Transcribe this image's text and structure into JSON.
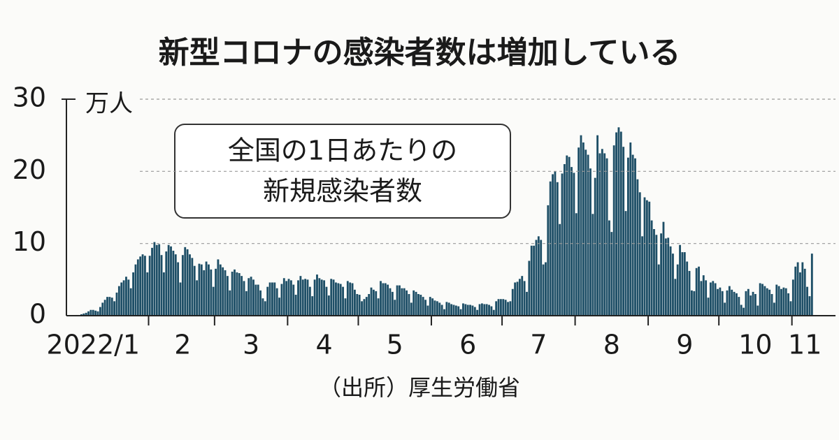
{
  "chart_data": {
    "type": "bar",
    "title": "新型コロナの感染者数は増加している",
    "y_unit": "万人",
    "annotation": [
      "全国の1日あたりの",
      "新規感染者数"
    ],
    "source": "（出所）厚生労働省",
    "color": "#1d4e66",
    "ylim": [
      0,
      30
    ],
    "yticks": [
      0,
      10,
      20,
      30
    ],
    "grid": true,
    "categories": [
      null,
      null,
      null,
      null,
      null,
      null,
      null,
      "2022/1",
      null,
      null,
      null,
      null,
      null,
      null,
      null,
      null,
      null,
      null,
      null,
      null,
      null,
      null,
      null,
      null,
      null,
      null,
      null,
      null,
      null,
      null,
      null,
      null,
      null,
      null,
      null,
      null,
      null,
      null,
      null,
      null,
      null,
      null,
      null,
      null,
      null,
      "2",
      null,
      null,
      null,
      null,
      null,
      null,
      null,
      null,
      null,
      null,
      null,
      null,
      null,
      null,
      null,
      null,
      null,
      null,
      null,
      null,
      null,
      null,
      null,
      null,
      null,
      null,
      null,
      null,
      "3",
      null,
      null,
      null,
      null,
      null,
      null,
      null,
      null,
      null,
      null,
      null,
      null,
      null,
      null,
      null,
      null,
      null,
      null,
      null,
      null,
      null,
      null,
      null,
      null,
      null,
      null,
      null,
      null,
      null,
      null,
      "4",
      null,
      null,
      null,
      null,
      null,
      null,
      null,
      null,
      null,
      null,
      null,
      null,
      null,
      null,
      null,
      null,
      null,
      null,
      null,
      null,
      null,
      null,
      null,
      null,
      null,
      null,
      null,
      null,
      null,
      "5",
      null,
      null,
      null,
      null,
      null,
      null,
      null,
      null,
      null,
      null,
      null,
      null,
      null,
      null,
      null,
      null,
      null,
      null,
      null,
      null,
      null,
      null,
      null,
      null,
      null,
      null,
      null,
      null,
      null,
      null,
      "6",
      null,
      null,
      null,
      null,
      null,
      null,
      null,
      null,
      null,
      null,
      null,
      null,
      null,
      null,
      null,
      null,
      null,
      null,
      null,
      null,
      null,
      null,
      null,
      null,
      null,
      null,
      null,
      null,
      null,
      "7",
      null,
      null,
      null,
      null,
      null,
      null,
      null,
      null,
      null,
      null,
      null,
      null,
      null,
      null,
      null,
      null,
      null,
      null,
      null,
      null,
      null,
      null,
      null,
      null,
      null,
      null,
      null,
      null,
      null,
      null,
      "8",
      null,
      null,
      null,
      null,
      null,
      null,
      null,
      null,
      null,
      null,
      null,
      null,
      null,
      null,
      null,
      null,
      null,
      null,
      null,
      null,
      null,
      null,
      null,
      null,
      null,
      null,
      null,
      null,
      null,
      null,
      "9",
      null,
      null,
      null,
      null,
      null,
      null,
      null,
      null,
      null,
      null,
      null,
      null,
      null,
      null,
      null,
      null,
      null,
      null,
      null,
      null,
      null,
      null,
      null,
      null,
      null,
      null,
      null,
      null,
      null,
      "10",
      null,
      null,
      null,
      null,
      null,
      null,
      null,
      null,
      null,
      null,
      null,
      null,
      null,
      null,
      null,
      null,
      null,
      null,
      null,
      null,
      "11",
      null,
      null,
      null
    ],
    "values": [
      0.1,
      0.1,
      0.2,
      0.3,
      0.4,
      0.6,
      0.8,
      0.8,
      0.7,
      0.6,
      1.2,
      1.8,
      2.2,
      2.6,
      2.6,
      2.5,
      2.0,
      3.2,
      4.1,
      4.6,
      4.9,
      5.4,
      5.0,
      3.8,
      6.0,
      7.1,
      7.8,
      8.2,
      8.5,
      8.3,
      6.0,
      8.3,
      9.4,
      10.2,
      9.8,
      9.9,
      8.4,
      6.0,
      8.9,
      9.8,
      9.6,
      9.0,
      8.5,
      7.4,
      4.6,
      8.4,
      9.5,
      9.2,
      8.5,
      8.0,
      6.9,
      4.9,
      7.2,
      7.1,
      6.3,
      7.5,
      7.1,
      6.4,
      4.0,
      6.5,
      7.8,
      7.1,
      6.7,
      6.3,
      5.5,
      3.5,
      6.1,
      6.4,
      6.0,
      5.9,
      5.5,
      4.8,
      3.4,
      5.2,
      5.4,
      5.0,
      4.3,
      4.3,
      3.5,
      2.4,
      2.0,
      4.0,
      4.6,
      4.6,
      4.6,
      3.8,
      2.5,
      4.4,
      5.2,
      4.8,
      5.1,
      4.9,
      4.3,
      2.9,
      4.9,
      5.5,
      5.0,
      5.1,
      5.0,
      4.0,
      2.7,
      5.0,
      5.7,
      5.2,
      5.0,
      4.9,
      4.0,
      2.8,
      5.1,
      5.0,
      4.6,
      4.5,
      4.4,
      4.0,
      2.4,
      4.8,
      4.6,
      4.5,
      3.6,
      3.0,
      2.9,
      2.0,
      2.3,
      2.6,
      3.0,
      3.9,
      3.6,
      3.4,
      2.4,
      4.8,
      4.5,
      4.5,
      4.3,
      3.8,
      3.3,
      2.2,
      4.2,
      4.2,
      3.8,
      3.8,
      3.5,
      3.0,
      1.8,
      3.5,
      3.3,
      3.0,
      2.9,
      2.6,
      2.2,
      1.4,
      2.6,
      2.4,
      2.1,
      2.0,
      1.8,
      1.5,
      0.9,
      1.9,
      1.8,
      1.6,
      1.5,
      1.4,
      1.3,
      0.9,
      1.7,
      1.6,
      1.5,
      1.5,
      1.4,
      1.2,
      0.8,
      1.6,
      1.7,
      1.6,
      1.6,
      1.5,
      1.3,
      0.8,
      2.0,
      2.3,
      2.3,
      2.3,
      2.2,
      1.9,
      2.0,
      3.7,
      4.6,
      4.7,
      5.1,
      5.5,
      4.8,
      3.3,
      7.6,
      9.7,
      9.7,
      10.5,
      11.0,
      10.5,
      7.1,
      7.4,
      15.3,
      18.6,
      19.6,
      20.0,
      18.5,
      12.7,
      19.7,
      21.0,
      22.2,
      22.0,
      20.6,
      19.8,
      14.2,
      23.3,
      25.0,
      24.0,
      23.0,
      22.3,
      20.4,
      14.1,
      19.1,
      25.0,
      22.5,
      23.1,
      22.5,
      21.8,
      13.2,
      11.6,
      23.6,
      25.4,
      26.1,
      25.5,
      23.4,
      14.5,
      21.9,
      24.0,
      22.3,
      21.8,
      18.9,
      17.1,
      11.0,
      16.4,
      16.0,
      15.8,
      13.2,
      12.0,
      11.2,
      7.1,
      11.4,
      13.0,
      10.7,
      10.8,
      9.6,
      8.6,
      5.1,
      7.1,
      9.8,
      8.8,
      8.8,
      7.5,
      6.2,
      3.5,
      3.4,
      6.6,
      6.8,
      4.8,
      5.6,
      4.9,
      2.5,
      4.6,
      4.8,
      4.5,
      3.7,
      3.9,
      3.4,
      1.8,
      3.5,
      4.1,
      3.6,
      3.3,
      3.1,
      2.6,
      1.5,
      1.1,
      3.4,
      3.7,
      2.8,
      3.3,
      3.0,
      1.4,
      4.5,
      4.4,
      4.1,
      3.8,
      3.6,
      3.0,
      1.8,
      4.3,
      4.1,
      3.7,
      3.9,
      3.8,
      3.1,
      2.0,
      5.0,
      6.8,
      7.4,
      6.0,
      7.4,
      6.5,
      4.0,
      2.7,
      8.6
    ]
  }
}
